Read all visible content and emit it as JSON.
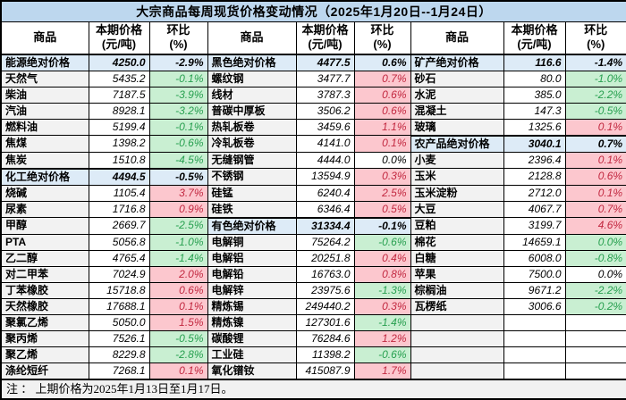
{
  "colors": {
    "title_bg": "#BDD7EE",
    "aggregate_row_bg": "#DDEBF7",
    "commodity_col_bg": "#F2F2F2",
    "increase_bg": "#FCC7CE",
    "increase_text": "#C22840",
    "decrease_bg": "#C9EFD2",
    "decrease_text": "#28A050",
    "note_bg": "#F1F1F1",
    "border": "#000000"
  },
  "chart_data": {
    "type": "table",
    "title": "大宗商品每周现货价格变动情况（2025年1月20日--1月24日）",
    "note": "注 ： 上期价格为2025年1月13日至1月17日。",
    "header": {
      "commodity": "商品",
      "price_line1": "本期价格",
      "price_line2": "(元/吨)",
      "pct_line1": "环比",
      "pct_line2": "(%)"
    },
    "groups": [
      {
        "rows": [
          {
            "name": "能源绝对价格",
            "price": "4250.0",
            "pct": "-2.9%",
            "type": "agg"
          },
          {
            "name": "天然气",
            "price": "5435.2",
            "pct": "-0.1%",
            "type": "down"
          },
          {
            "name": "柴油",
            "price": "7187.5",
            "pct": "-3.9%",
            "type": "down"
          },
          {
            "name": "汽油",
            "price": "8928.1",
            "pct": "-3.2%",
            "type": "down"
          },
          {
            "name": "燃料油",
            "price": "5199.4",
            "pct": "-0.1%",
            "type": "down"
          },
          {
            "name": "焦煤",
            "price": "1398.2",
            "pct": "-0.6%",
            "type": "down"
          },
          {
            "name": "焦炭",
            "price": "1510.8",
            "pct": "-4.5%",
            "type": "down"
          },
          {
            "name": "化工绝对价格",
            "price": "4494.5",
            "pct": "-0.5%",
            "type": "agg"
          },
          {
            "name": "烧碱",
            "price": "1105.4",
            "pct": "3.7%",
            "type": "up"
          },
          {
            "name": "尿素",
            "price": "1716.8",
            "pct": "0.9%",
            "type": "up"
          },
          {
            "name": "甲醇",
            "price": "2669.7",
            "pct": "-2.5%",
            "type": "down"
          },
          {
            "name": "PTA",
            "price": "5056.8",
            "pct": "-1.0%",
            "type": "down"
          },
          {
            "name": "乙二醇",
            "price": "4765.4",
            "pct": "-1.4%",
            "type": "down"
          },
          {
            "name": "对二甲苯",
            "price": "7024.9",
            "pct": "2.0%",
            "type": "up"
          },
          {
            "name": "丁苯橡胶",
            "price": "15718.8",
            "pct": "0.6%",
            "type": "up"
          },
          {
            "name": "天然橡胶",
            "price": "17688.1",
            "pct": "0.1%",
            "type": "up"
          },
          {
            "name": "聚氯乙烯",
            "price": "5050.0",
            "pct": "1.5%",
            "type": "up"
          },
          {
            "name": "聚丙烯",
            "price": "7526.1",
            "pct": "-0.5%",
            "type": "down"
          },
          {
            "name": "聚乙烯",
            "price": "8229.8",
            "pct": "-2.8%",
            "type": "down"
          },
          {
            "name": "涤纶短纤",
            "price": "7268.1",
            "pct": "0.1%",
            "type": "up"
          }
        ]
      },
      {
        "rows": [
          {
            "name": "黑色绝对价格",
            "price": "4477.5",
            "pct": "0.6%",
            "type": "agg"
          },
          {
            "name": "螺纹钢",
            "price": "3477.7",
            "pct": "0.7%",
            "type": "up"
          },
          {
            "name": "线材",
            "price": "3787.3",
            "pct": "0.6%",
            "type": "up"
          },
          {
            "name": "普碳中厚板",
            "price": "3506.2",
            "pct": "0.6%",
            "type": "up"
          },
          {
            "name": "热轧板卷",
            "price": "3459.6",
            "pct": "1.1%",
            "type": "up"
          },
          {
            "name": "冷轧板卷",
            "price": "4141.0",
            "pct": "0.1%",
            "type": "up"
          },
          {
            "name": "无缝钢管",
            "price": "4444.0",
            "pct": "0.0%",
            "type": "flat"
          },
          {
            "name": "不锈钢",
            "price": "13594.9",
            "pct": "0.3%",
            "type": "up"
          },
          {
            "name": "硅锰",
            "price": "6240.4",
            "pct": "2.5%",
            "type": "up"
          },
          {
            "name": "硅铁",
            "price": "6346.4",
            "pct": "0.5%",
            "type": "up"
          },
          {
            "name": "有色绝对价格",
            "price": "31334.4",
            "pct": "-0.1%",
            "type": "agg"
          },
          {
            "name": "电解铜",
            "price": "75264.2",
            "pct": "-0.6%",
            "type": "down"
          },
          {
            "name": "电解铝",
            "price": "20251.8",
            "pct": "0.4%",
            "type": "up"
          },
          {
            "name": "电解铅",
            "price": "16763.0",
            "pct": "0.8%",
            "type": "up"
          },
          {
            "name": "电解锌",
            "price": "23975.6",
            "pct": "-1.3%",
            "type": "down"
          },
          {
            "name": "精炼锡",
            "price": "249440.2",
            "pct": "0.3%",
            "type": "up"
          },
          {
            "name": "精炼镍",
            "price": "127301.6",
            "pct": "-1.4%",
            "type": "down"
          },
          {
            "name": "碳酸锂",
            "price": "76284.6",
            "pct": "1.2%",
            "type": "up"
          },
          {
            "name": "工业硅",
            "price": "11398.2",
            "pct": "-0.6%",
            "type": "down"
          },
          {
            "name": "氧化镨钕",
            "price": "415087.9",
            "pct": "1.7%",
            "type": "up"
          }
        ]
      },
      {
        "rows": [
          {
            "name": "矿产绝对价格",
            "price": "116.6",
            "pct": "-1.4%",
            "type": "agg"
          },
          {
            "name": "砂石",
            "price": "80.0",
            "pct": "-1.0%",
            "type": "down"
          },
          {
            "name": "水泥",
            "price": "385.0",
            "pct": "-2.2%",
            "type": "down"
          },
          {
            "name": "混凝土",
            "price": "147.3",
            "pct": "-0.5%",
            "type": "down"
          },
          {
            "name": "玻璃",
            "price": "1325.6",
            "pct": "0.1%",
            "type": "up"
          },
          {
            "name": "农产品绝对价格",
            "price": "3040.1",
            "pct": "0.7%",
            "type": "agg"
          },
          {
            "name": "小麦",
            "price": "2396.4",
            "pct": "0.1%",
            "type": "up"
          },
          {
            "name": "玉米",
            "price": "2128.8",
            "pct": "0.6%",
            "type": "up"
          },
          {
            "name": "玉米淀粉",
            "price": "2712.0",
            "pct": "0.1%",
            "type": "up"
          },
          {
            "name": "大豆",
            "price": "4067.7",
            "pct": "0.7%",
            "type": "up"
          },
          {
            "name": "豆粕",
            "price": "3199.7",
            "pct": "4.6%",
            "type": "up"
          },
          {
            "name": "棉花",
            "price": "14659.1",
            "pct": "0.0%",
            "type": "down"
          },
          {
            "name": "白糖",
            "price": "6008.0",
            "pct": "-0.8%",
            "type": "down"
          },
          {
            "name": "苹果",
            "price": "7500.0",
            "pct": "0.0%",
            "type": "flat"
          },
          {
            "name": "棕榈油",
            "price": "9671.2",
            "pct": "-2.2%",
            "type": "down"
          },
          {
            "name": "瓦楞纸",
            "price": "3006.6",
            "pct": "-0.2%",
            "type": "down"
          },
          {
            "name": "",
            "price": "",
            "pct": "",
            "type": "empty"
          },
          {
            "name": "",
            "price": "",
            "pct": "",
            "type": "empty"
          },
          {
            "name": "",
            "price": "",
            "pct": "",
            "type": "empty"
          },
          {
            "name": "",
            "price": "",
            "pct": "",
            "type": "empty"
          }
        ]
      }
    ]
  }
}
